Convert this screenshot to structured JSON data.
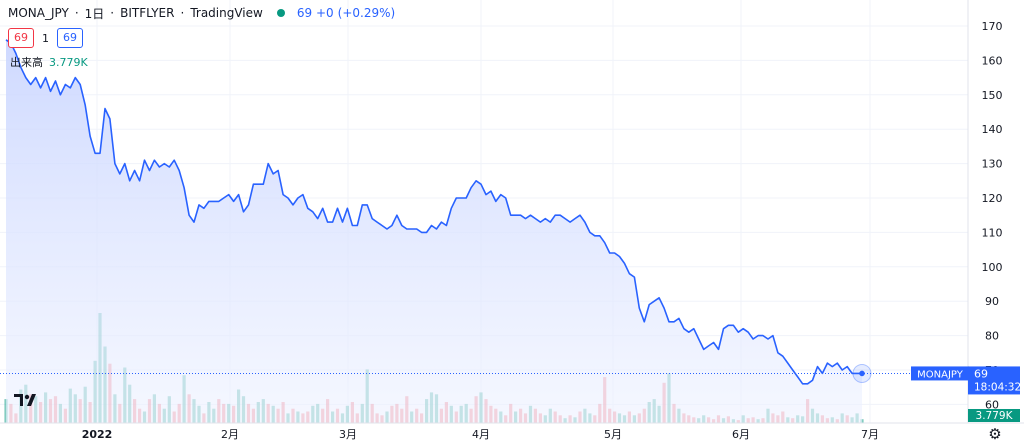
{
  "header": {
    "symbol": "MONA_JPY",
    "interval": "1日",
    "exchange": "BITFLYER",
    "source": "TradingView",
    "last": "69",
    "change": "+0",
    "change_pct": "(+0.29%)"
  },
  "trade": {
    "sell": "69",
    "spread": "1",
    "buy": "69"
  },
  "volume": {
    "label": "出来高",
    "value": "3.779K"
  },
  "price_tag": {
    "symbol": "MONAJPY",
    "price": "69",
    "countdown": "18:04:32"
  },
  "volume_tag": "3.779K",
  "colors": {
    "line": "#2962ff",
    "area": "#dbe3ff",
    "up": "#089981",
    "down": "#f23645"
  },
  "chart_data": {
    "type": "area",
    "price_axis": {
      "ticks": [
        60,
        70,
        80,
        90,
        100,
        110,
        120,
        130,
        140,
        150,
        160,
        170
      ],
      "ylim": [
        57,
        174
      ]
    },
    "time_axis": {
      "labels": [
        "2022",
        "2月",
        "3月",
        "4月",
        "5月",
        "6月",
        "7月"
      ]
    },
    "price": [
      166,
      165,
      162,
      158,
      155,
      153,
      155,
      152,
      155,
      151,
      154,
      150,
      153,
      152,
      155,
      153,
      147,
      138,
      133,
      133,
      146,
      143,
      130,
      127,
      130,
      125,
      128,
      125,
      131,
      128,
      131,
      129,
      130,
      129,
      131,
      128,
      123,
      115,
      113,
      118,
      117,
      119,
      119,
      119,
      120,
      121,
      119,
      121,
      116,
      118,
      124,
      124,
      124,
      130,
      127,
      128,
      121,
      120,
      118,
      120,
      121,
      117,
      116,
      114,
      117,
      113,
      113,
      117,
      113,
      117,
      112,
      112,
      118,
      118,
      114,
      113,
      112,
      111,
      112,
      115,
      112,
      111,
      111,
      111,
      110,
      110,
      112,
      111,
      113,
      112,
      117,
      120,
      120,
      120,
      123,
      125,
      124,
      121,
      122,
      119,
      121,
      120,
      115,
      115,
      115,
      114,
      115,
      114,
      113,
      114,
      113,
      115,
      115,
      114,
      113,
      114,
      115,
      113,
      110,
      109,
      109,
      107,
      104,
      104,
      103,
      101,
      98,
      97,
      88,
      84,
      89,
      90,
      91,
      88,
      84,
      84,
      85,
      82,
      81,
      82,
      79,
      76,
      77,
      78,
      76,
      82,
      83,
      83,
      81,
      82,
      81,
      79,
      80,
      80,
      79,
      80,
      75,
      74,
      72,
      70,
      68,
      66,
      66,
      67,
      71,
      69,
      72,
      71,
      72,
      70,
      71,
      69,
      69,
      69
    ],
    "volume": [
      2.5,
      2.0,
      1.0,
      3.5,
      4.0,
      3.0,
      2.8,
      2.2,
      3.2,
      2.5,
      2.8,
      2.0,
      1.5,
      3.6,
      3.0,
      2.5,
      3.8,
      2.2,
      6.5,
      11.5,
      8.0,
      6.2,
      3.0,
      2.0,
      5.8,
      4.0,
      2.5,
      1.5,
      1.2,
      2.5,
      3.0,
      2.0,
      1.5,
      2.8,
      1.2,
      2.0,
      5.0,
      3.0,
      2.5,
      1.8,
      1.0,
      2.2,
      1.5,
      2.5,
      2.0,
      2.0,
      1.8,
      3.5,
      2.8,
      2.0,
      1.5,
      2.2,
      2.5,
      2.0,
      1.8,
      1.5,
      2.2,
      1.0,
      1.5,
      1.2,
      1.0,
      1.2,
      1.8,
      2.0,
      1.5,
      2.5,
      1.2,
      1.5,
      1.0,
      1.8,
      2.2,
      1.0,
      2.0,
      5.6,
      2.0,
      1.0,
      0.8,
      1.2,
      1.8,
      2.0,
      1.5,
      2.8,
      1.2,
      1.5,
      1.0,
      2.5,
      3.2,
      3.0,
      1.5,
      2.2,
      1.8,
      1.2,
      1.8,
      2.0,
      1.5,
      2.8,
      3.2,
      2.5,
      1.8,
      1.5,
      1.2,
      0.8,
      2.0,
      1.2,
      1.5,
      1.0,
      1.8,
      1.5,
      1.0,
      0.8,
      1.5,
      1.2,
      0.8,
      0.5,
      0.8,
      0.6,
      1.2,
      1.5,
      1.0,
      0.8,
      2.0,
      4.8,
      1.5,
      1.2,
      1.0,
      0.8,
      1.2,
      0.8,
      1.0,
      1.5,
      2.2,
      2.5,
      1.8,
      4.2,
      5.2,
      2.0,
      1.5,
      1.0,
      0.8,
      0.6,
      0.5,
      0.8,
      0.6,
      0.4,
      0.8,
      0.5,
      0.7,
      0.4,
      0.3,
      0.8,
      0.5,
      0.6,
      0.4,
      0.5,
      1.5,
      1.0,
      0.8,
      1.2,
      0.6,
      0.5,
      0.8,
      0.7,
      2.5,
      1.5,
      1.0,
      0.8,
      0.5,
      0.6,
      0.4,
      1.0,
      0.8,
      0.6,
      1.0,
      0.4
    ],
    "volume_up": [
      1,
      0,
      0,
      1,
      1,
      0,
      1,
      0,
      1,
      0,
      0,
      1,
      0,
      1,
      1,
      0,
      1,
      0,
      1,
      1,
      1,
      0,
      1,
      0,
      1,
      1,
      0,
      0,
      1,
      0,
      1,
      0,
      1,
      1,
      0,
      0,
      1,
      0,
      1,
      1,
      0,
      1,
      1,
      0,
      0,
      1,
      0,
      1,
      1,
      0,
      0,
      1,
      1,
      0,
      1,
      0,
      0,
      1,
      0,
      1,
      0,
      0,
      1,
      1,
      0,
      0,
      1,
      0,
      1,
      1,
      0,
      0,
      1,
      1,
      0,
      0,
      0,
      1,
      0,
      0,
      0,
      0,
      1,
      0,
      0,
      1,
      1,
      1,
      0,
      0,
      1,
      0,
      1,
      1,
      0,
      0,
      1,
      0,
      0,
      0,
      1,
      0,
      0,
      1,
      0,
      0,
      1,
      0,
      0,
      1,
      1,
      0,
      0,
      1,
      0,
      1,
      0,
      1,
      1,
      0,
      0,
      0,
      0,
      0,
      1,
      1,
      0,
      1,
      0,
      0,
      1,
      1,
      1,
      0,
      1,
      0,
      1,
      0,
      0,
      0,
      1,
      1,
      0,
      0,
      0,
      1,
      0,
      1,
      0,
      1,
      0,
      0,
      1,
      0,
      1,
      0,
      0,
      0,
      1,
      0,
      1,
      1,
      0,
      1,
      1,
      0,
      0,
      1,
      0,
      1,
      0,
      1,
      1,
      1
    ]
  }
}
